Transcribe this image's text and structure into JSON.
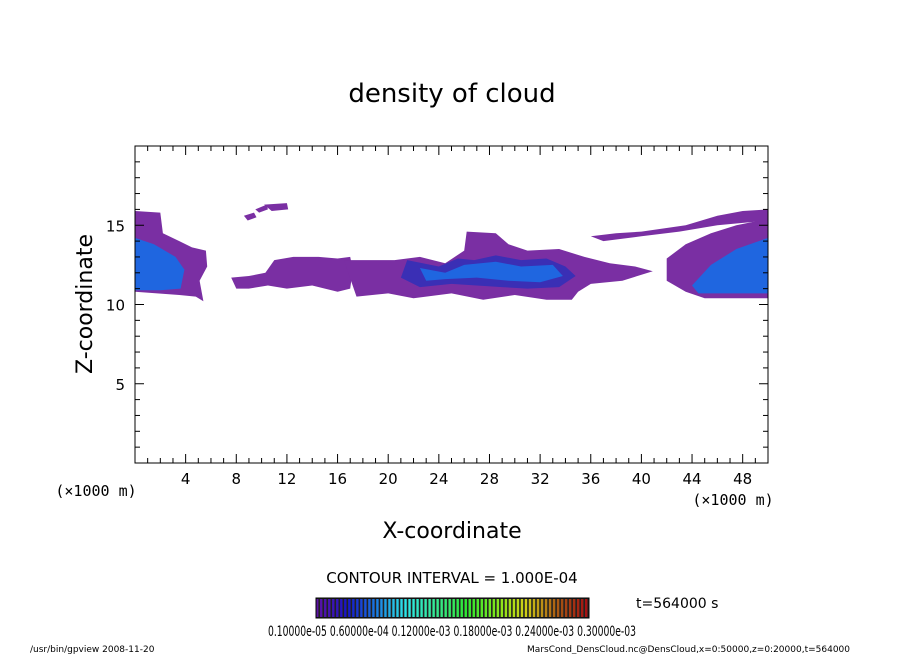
{
  "chart_data": {
    "type": "heatmap",
    "title": "density of cloud",
    "xlabel": "X-coordinate",
    "ylabel": "Z-coordinate",
    "x_unit": "(×1000 m)",
    "y_unit": "(×1000 m)",
    "xlim": [
      0,
      50
    ],
    "ylim": [
      0,
      20
    ],
    "xticks": [
      4,
      8,
      12,
      16,
      20,
      24,
      28,
      32,
      36,
      40,
      44,
      48
    ],
    "yticks": [
      5,
      10,
      15
    ],
    "contour_interval_label": "CONTOUR INTERVAL = 1.000E-04",
    "time_label": "t=564000 s",
    "colorbar_labels_text": "0.10000e-05 0.60000e-04 0.12000e-03 0.18000e-03 0.24000e-03 0.30000e-03",
    "colorbar_levels": [
      1e-06,
      6e-05,
      0.00012,
      0.00018,
      0.00024,
      0.0003
    ],
    "regions": [
      {
        "level": 1,
        "points": [
          [
            0,
            15.9
          ],
          [
            2,
            15.8
          ],
          [
            2.2,
            14.5
          ],
          [
            3.5,
            14
          ],
          [
            4.5,
            13.6
          ],
          [
            5.6,
            13.4
          ],
          [
            5.7,
            12.4
          ],
          [
            5.1,
            11.5
          ],
          [
            5.4,
            10.2
          ],
          [
            4.8,
            10.5
          ],
          [
            3.5,
            10.6
          ],
          [
            0,
            10.8
          ]
        ]
      },
      {
        "level": 3,
        "points": [
          [
            0,
            14.2
          ],
          [
            1.5,
            13.8
          ],
          [
            3.2,
            13.0
          ],
          [
            3.9,
            12.2
          ],
          [
            3.6,
            11.0
          ],
          [
            2,
            10.9
          ],
          [
            0,
            10.9
          ]
        ]
      },
      {
        "level": 1,
        "points": [
          [
            8.6,
            15.6
          ],
          [
            9.4,
            15.8
          ],
          [
            9.6,
            15.5
          ],
          [
            8.9,
            15.3
          ]
        ]
      },
      {
        "level": 1,
        "points": [
          [
            9.5,
            16.0
          ],
          [
            10.4,
            16.3
          ],
          [
            10.5,
            16.0
          ],
          [
            9.8,
            15.8
          ]
        ]
      },
      {
        "level": 1,
        "points": [
          [
            10.2,
            16.3
          ],
          [
            12.0,
            16.4
          ],
          [
            12.1,
            16.0
          ],
          [
            10.8,
            15.9
          ]
        ]
      },
      {
        "level": 1,
        "points": [
          [
            7.6,
            11.7
          ],
          [
            9.0,
            11.8
          ],
          [
            10.3,
            12.0
          ],
          [
            11.0,
            12.8
          ],
          [
            12.5,
            13.0
          ],
          [
            14.5,
            13.0
          ],
          [
            16.0,
            12.9
          ],
          [
            17.0,
            13.0
          ],
          [
            17.2,
            12.2
          ],
          [
            17.0,
            11.0
          ],
          [
            16.0,
            10.8
          ],
          [
            14.0,
            11.2
          ],
          [
            12.0,
            11.0
          ],
          [
            10.5,
            11.2
          ],
          [
            9.0,
            11.0
          ],
          [
            8.0,
            11.0
          ]
        ]
      },
      {
        "level": 1,
        "points": [
          [
            16.5,
            12.8
          ],
          [
            20.5,
            12.8
          ],
          [
            22.5,
            13.0
          ],
          [
            24.5,
            12.6
          ],
          [
            26.0,
            13.4
          ],
          [
            26.2,
            14.6
          ],
          [
            28.5,
            14.5
          ],
          [
            29.5,
            13.8
          ],
          [
            31.0,
            13.4
          ],
          [
            33.5,
            13.5
          ],
          [
            35.5,
            13.0
          ],
          [
            37.5,
            12.6
          ],
          [
            39.5,
            12.4
          ],
          [
            40.9,
            12.1
          ],
          [
            38.5,
            11.5
          ],
          [
            36.0,
            11.3
          ],
          [
            35.0,
            10.8
          ],
          [
            34.5,
            10.3
          ],
          [
            32.5,
            10.3
          ],
          [
            30.0,
            10.6
          ],
          [
            27.5,
            10.3
          ],
          [
            25.0,
            10.7
          ],
          [
            22.0,
            10.4
          ],
          [
            20.0,
            10.7
          ],
          [
            17.5,
            10.5
          ]
        ]
      },
      {
        "level": 2,
        "points": [
          [
            21.5,
            12.8
          ],
          [
            24.0,
            12.4
          ],
          [
            25.5,
            12.9
          ],
          [
            26.8,
            12.8
          ],
          [
            28.5,
            13.1
          ],
          [
            30.5,
            12.8
          ],
          [
            32.5,
            12.9
          ],
          [
            34.0,
            12.4
          ],
          [
            34.8,
            11.8
          ],
          [
            33.5,
            11.1
          ],
          [
            31.0,
            11.0
          ],
          [
            29.0,
            11.1
          ],
          [
            27.0,
            11.2
          ],
          [
            25.0,
            11.3
          ],
          [
            22.5,
            11.1
          ],
          [
            21.0,
            11.7
          ]
        ]
      },
      {
        "level": 3,
        "points": [
          [
            22.5,
            12.3
          ],
          [
            24.5,
            12.0
          ],
          [
            26.0,
            12.5
          ],
          [
            28.5,
            12.7
          ],
          [
            30.5,
            12.4
          ],
          [
            33.0,
            12.5
          ],
          [
            33.8,
            11.8
          ],
          [
            32.0,
            11.4
          ],
          [
            29.5,
            11.5
          ],
          [
            27.0,
            11.7
          ],
          [
            24.5,
            11.6
          ],
          [
            23.0,
            11.5
          ]
        ]
      },
      {
        "level": 1,
        "points": [
          [
            42.0,
            12.9
          ],
          [
            43.5,
            13.8
          ],
          [
            45.5,
            14.5
          ],
          [
            47.5,
            15.0
          ],
          [
            50,
            15.4
          ],
          [
            50,
            10.4
          ],
          [
            45.0,
            10.4
          ],
          [
            43.5,
            10.8
          ],
          [
            42.0,
            11.5
          ]
        ]
      },
      {
        "level": 1,
        "points": [
          [
            36.0,
            14.3
          ],
          [
            38.0,
            14.5
          ],
          [
            40.0,
            14.6
          ],
          [
            43.5,
            15.0
          ],
          [
            46.0,
            15.6
          ],
          [
            48.0,
            15.9
          ],
          [
            50,
            16.0
          ],
          [
            50,
            15.3
          ],
          [
            46.0,
            15.0
          ],
          [
            43.0,
            14.6
          ],
          [
            40.0,
            14.3
          ],
          [
            37.0,
            14.0
          ]
        ]
      },
      {
        "level": 3,
        "points": [
          [
            44.0,
            11.2
          ],
          [
            45.5,
            12.5
          ],
          [
            47.5,
            13.5
          ],
          [
            50,
            14.2
          ],
          [
            50,
            10.7
          ],
          [
            44.5,
            10.7
          ]
        ]
      }
    ]
  },
  "footer": {
    "left": "/usr/bin/gpview   2008-11-20",
    "right": "MarsCond_DensCloud.nc@DensCloud,x=0:50000,z=0:20000,t=564000"
  },
  "colors": {
    "level_1": "#7a2fa3",
    "level_2": "#3a2fb5",
    "level_3": "#1f66e0",
    "level_4": "#37b6f0"
  }
}
